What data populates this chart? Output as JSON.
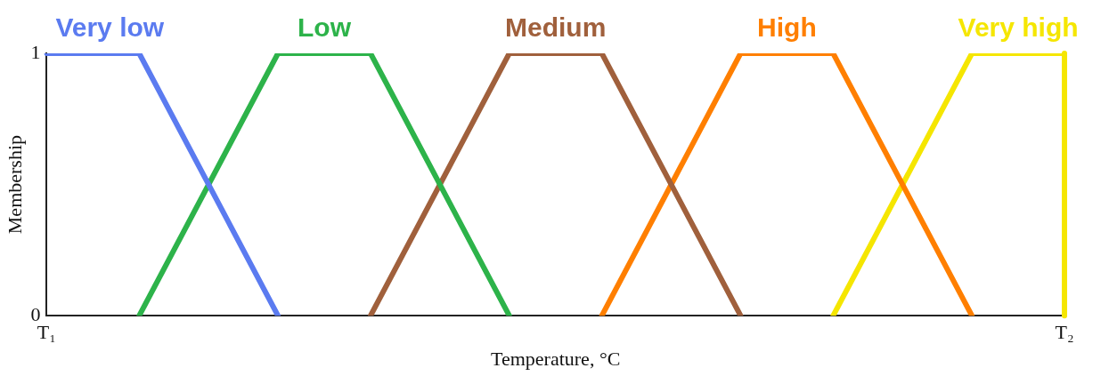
{
  "chart_data": {
    "type": "line",
    "xlabel": "Temperature, °C",
    "ylabel": "Membership",
    "categories": [
      "T₁",
      null,
      null,
      null,
      null,
      null,
      null,
      null,
      null,
      null,
      null,
      null,
      null,
      null,
      null,
      null,
      null,
      null,
      null,
      null,
      null,
      null,
      "T₂"
    ],
    "ylim": [
      0,
      1
    ],
    "yticks": [
      0,
      1
    ],
    "grid": false,
    "legend": false,
    "marker": "none",
    "line_style": "solid",
    "ref_lines": [
      {
        "axis": "x",
        "value": "T₂",
        "color": "#f5e600"
      }
    ],
    "series": [
      {
        "name": "Very low",
        "color": "#5b7bf0",
        "values": [
          1,
          null,
          1,
          null,
          null,
          0,
          null,
          null,
          null,
          null,
          null,
          null,
          null,
          null,
          null,
          null,
          null,
          null,
          null,
          null,
          null,
          null,
          null
        ]
      },
      {
        "name": "Low",
        "color": "#2db34a",
        "values": [
          null,
          null,
          0,
          null,
          null,
          1,
          null,
          1,
          null,
          null,
          0,
          null,
          null,
          null,
          null,
          null,
          null,
          null,
          null,
          null,
          null,
          null,
          null
        ]
      },
      {
        "name": "Medium",
        "color": "#a0603c",
        "values": [
          null,
          null,
          null,
          null,
          null,
          null,
          null,
          0,
          null,
          null,
          1,
          null,
          1,
          null,
          null,
          0,
          null,
          null,
          null,
          null,
          null,
          null,
          null
        ]
      },
      {
        "name": "High",
        "color": "#ff7f00",
        "values": [
          null,
          null,
          null,
          null,
          null,
          null,
          null,
          null,
          null,
          null,
          null,
          null,
          0,
          null,
          null,
          1,
          null,
          1,
          null,
          null,
          0,
          null,
          null
        ]
      },
      {
        "name": "Very high",
        "color": "#f5e600",
        "values": [
          null,
          null,
          null,
          null,
          null,
          null,
          null,
          null,
          null,
          null,
          null,
          null,
          null,
          null,
          null,
          null,
          null,
          0,
          null,
          null,
          1,
          null,
          1
        ]
      }
    ]
  }
}
